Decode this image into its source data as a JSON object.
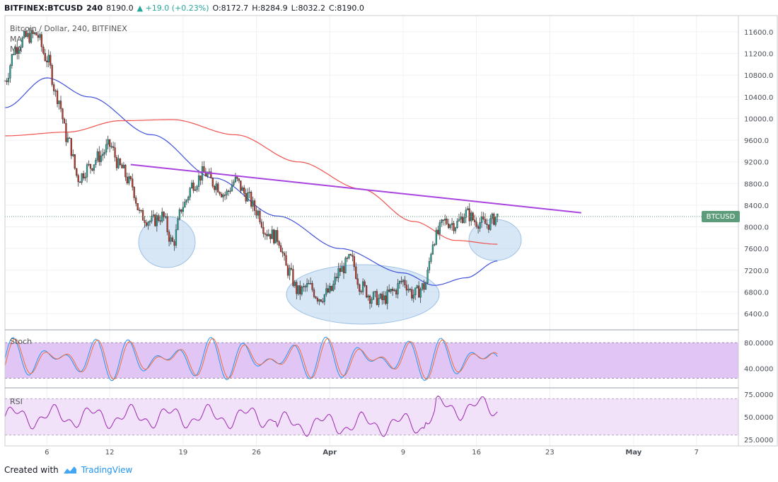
{
  "header": {
    "symbol": "BITFINEX:BTCUSD",
    "interval": "240",
    "last": "8190.0",
    "change": "▲ +19.0 (+0.23%)",
    "open": "O:8172.7",
    "high": "H:8284.9",
    "low": "L:8032.2",
    "close": "C:8190.0"
  },
  "panel_labels": {
    "title": "Bitcoin / Dollar, 240, BITFINEX",
    "ma1": "MA",
    "ma2": "MA",
    "stoch": "Stoch",
    "rsi": "RSI"
  },
  "footer": {
    "created_with": "Created with",
    "brand": "TradingView"
  },
  "current_price_tag": "BTCUSD",
  "colors": {
    "bull": "#26a69a",
    "bear": "#c0392b",
    "ma_fast": "#3f51d9",
    "ma_slow": "#ef5350",
    "trendline": "#a944e0",
    "ellipse": "#b7d3ef",
    "stoch_band": "#e1c6f5",
    "rsi_band": "#f1e2fa",
    "stoch_k": "#2196f3",
    "stoch_d": "#ef6c3d",
    "rsi_line": "#9c27b0"
  },
  "chart_data": [
    {
      "type": "candlestick",
      "title": "Bitcoin / Dollar, 240, BITFINEX",
      "x_ticks": [
        "6",
        "12",
        "19",
        "26",
        "Apr",
        "9",
        "16",
        "23",
        "May",
        "7"
      ],
      "y_ticks": [
        "11600.0",
        "11200.0",
        "10800.0",
        "10400.0",
        "10000.0",
        "9600.0",
        "9200.0",
        "8800.0",
        "8400.0",
        "8000.0",
        "7600.0",
        "7200.0",
        "6800.0",
        "6400.0"
      ],
      "ylim": [
        6100,
        11900
      ],
      "xlim": [
        "Mar 2",
        "May 11"
      ],
      "grid": true,
      "close_path": [
        [
          "Mar 2",
          10700
        ],
        [
          "Mar 3",
          11300
        ],
        [
          "Mar 4",
          11500
        ],
        [
          "Mar 5",
          11550
        ],
        [
          "Mar 6",
          11100
        ],
        [
          "Mar 7",
          10400
        ],
        [
          "Mar 8",
          9600
        ],
        [
          "Mar 9",
          8900
        ],
        [
          "Mar 10",
          9100
        ],
        [
          "Mar 11",
          9300
        ],
        [
          "Mar 12",
          9500
        ],
        [
          "Mar 13",
          9100
        ],
        [
          "Mar 14",
          8800
        ],
        [
          "Mar 15",
          8200
        ],
        [
          "Mar 16",
          8100
        ],
        [
          "Mar 17",
          8200
        ],
        [
          "Mar 18",
          7700
        ],
        [
          "Mar 19",
          8400
        ],
        [
          "Mar 20",
          8800
        ],
        [
          "Mar 21",
          9000
        ],
        [
          "Mar 22",
          8800
        ],
        [
          "Mar 23",
          8600
        ],
        [
          "Mar 24",
          8850
        ],
        [
          "Mar 25",
          8600
        ],
        [
          "Mar 26",
          8300
        ],
        [
          "Mar 27",
          7900
        ],
        [
          "Mar 28",
          7800
        ],
        [
          "Mar 29",
          7200
        ],
        [
          "Mar 30",
          6800
        ],
        [
          "Mar 31",
          6900
        ],
        [
          "Apr 1",
          6700
        ],
        [
          "Apr 2",
          6800
        ],
        [
          "Apr 3",
          7200
        ],
        [
          "Apr 4",
          7400
        ],
        [
          "Apr 5",
          6900
        ],
        [
          "Apr 6",
          6700
        ],
        [
          "Apr 7",
          6650
        ],
        [
          "Apr 8",
          6800
        ],
        [
          "Apr 9",
          7000
        ],
        [
          "Apr 10",
          6750
        ],
        [
          "Apr 11",
          6900
        ],
        [
          "Apr 12",
          7800
        ],
        [
          "Apr 13",
          8100
        ],
        [
          "Apr 14",
          8050
        ],
        [
          "Apr 15",
          8250
        ],
        [
          "Apr 16",
          8100
        ],
        [
          "Apr 17",
          8050
        ],
        [
          "Apr 18",
          8190
        ]
      ],
      "ma_fast_path": [
        [
          "Mar 2",
          10200
        ],
        [
          "Mar 6",
          10750
        ],
        [
          "Mar 10",
          10400
        ],
        [
          "Mar 16",
          9700
        ],
        [
          "Mar 22",
          8900
        ],
        [
          "Mar 28",
          8200
        ],
        [
          "Apr 3",
          7600
        ],
        [
          "Apr 9",
          7150
        ],
        [
          "Apr 12",
          6920
        ],
        [
          "Apr 15",
          7060
        ],
        [
          "Apr 18",
          7370
        ]
      ],
      "ma_slow_path": [
        [
          "Mar 2",
          9680
        ],
        [
          "Mar 8",
          9750
        ],
        [
          "Mar 13",
          9960
        ],
        [
          "Mar 18",
          9980
        ],
        [
          "Mar 24",
          9700
        ],
        [
          "Mar 30",
          9200
        ],
        [
          "Apr 5",
          8700
        ],
        [
          "Apr 10",
          8100
        ],
        [
          "Apr 14",
          7750
        ],
        [
          "Apr 18",
          7680
        ]
      ],
      "trendline": [
        [
          "Mar 14",
          9150
        ],
        [
          "Apr 26",
          8260
        ]
      ],
      "current_price": 8190.0
    },
    {
      "type": "line",
      "title": "Stoch",
      "y_ticks": [
        "80.0000",
        "40.0000"
      ],
      "ylim": [
        10,
        100
      ],
      "bands": [
        25,
        80
      ]
    },
    {
      "type": "line",
      "title": "RSI",
      "y_ticks": [
        "75.0000",
        "50.0000",
        "25.0000"
      ],
      "ylim": [
        18,
        82
      ],
      "bands": [
        30,
        70
      ]
    }
  ]
}
